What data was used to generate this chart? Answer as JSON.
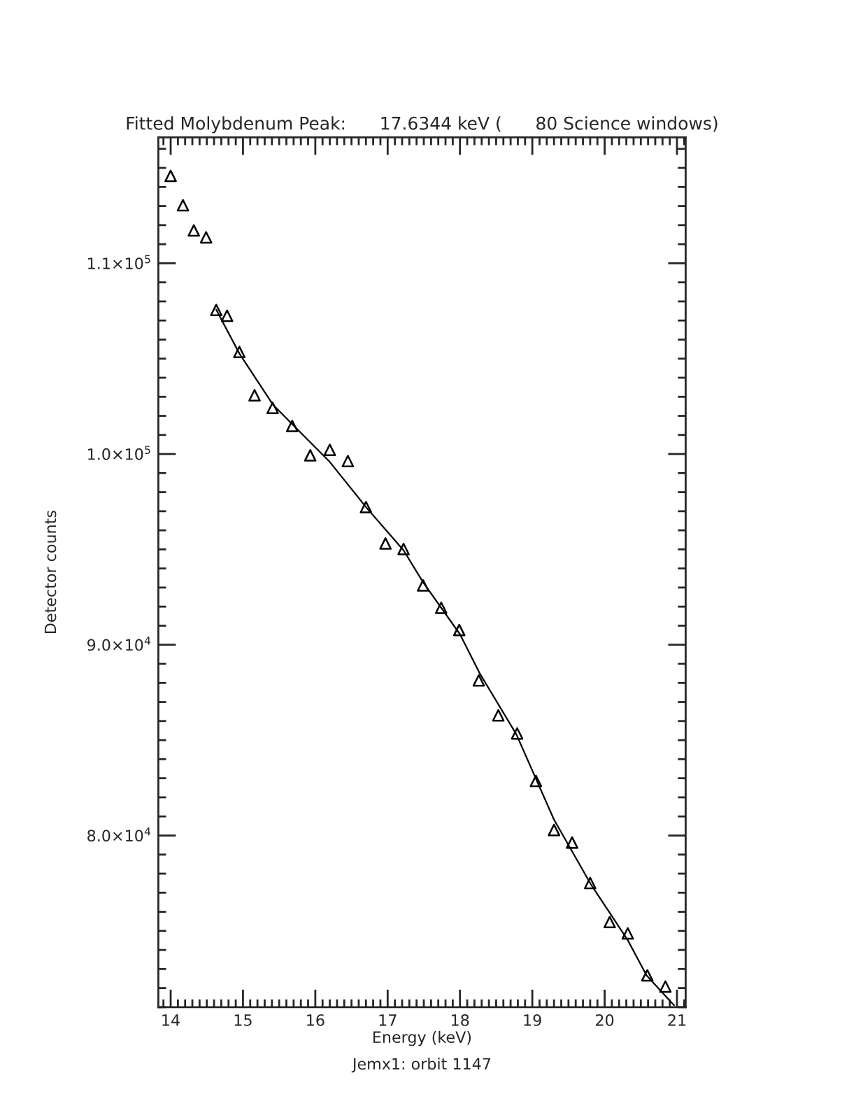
{
  "chart_data": {
    "type": "scatter",
    "title": "Fitted Molybdenum Peak:      17.6344 keV (      80 Science windows)",
    "xlabel": "Energy (keV)",
    "ylabel": "Detector counts",
    "annotations": [
      "Jemx1: orbit 1147"
    ],
    "xlim": [
      13.83,
      21.12
    ],
    "xticks": [
      14,
      15,
      16,
      17,
      18,
      19,
      20,
      21
    ],
    "ylim": [
      71000,
      116600
    ],
    "yticks": [
      {
        "value": 80000,
        "label": "8.0×10$^{4}$"
      },
      {
        "value": 90000,
        "label": "9.0×10$^{4}$"
      },
      {
        "value": 100000,
        "label": "1.0×10$^{5}$"
      },
      {
        "value": 110000,
        "label": "1.1×10$^{5}$"
      }
    ],
    "series": [
      {
        "color": "#000000",
        "marker": "triangle",
        "x": [
          14.0,
          14.17,
          14.32,
          14.49,
          14.63,
          14.78,
          14.95,
          15.16,
          15.41,
          15.68,
          15.93,
          16.2,
          16.45,
          16.7,
          16.97,
          17.22,
          17.49,
          17.74,
          17.99,
          18.26,
          18.53,
          18.79,
          19.05,
          19.3,
          19.55,
          19.8,
          20.07,
          20.32,
          20.59,
          20.84
        ],
        "values": [
          114580,
          113040,
          111720,
          111360,
          107550,
          107250,
          105350,
          103080,
          102420,
          101470,
          99930,
          100220,
          99630,
          97220,
          95310,
          95020,
          93110,
          91940,
          90770,
          88130,
          86300,
          85350,
          82860,
          80290,
          79630,
          77510,
          75460,
          74870,
          72670,
          72080
        ]
      },
      {
        "type": "line",
        "color": "#000000",
        "line_style": "solid",
        "x": [
          14.63,
          14.95,
          15.42,
          16.19,
          16.7,
          17.22,
          17.49,
          18.0,
          18.27,
          18.78,
          19.3,
          19.81,
          20.32,
          20.58,
          20.96
        ],
        "values": [
          107570,
          105270,
          102560,
          99630,
          97220,
          94950,
          93280,
          90550,
          88520,
          85300,
          80830,
          77440,
          74510,
          72660,
          71100
        ]
      }
    ]
  }
}
